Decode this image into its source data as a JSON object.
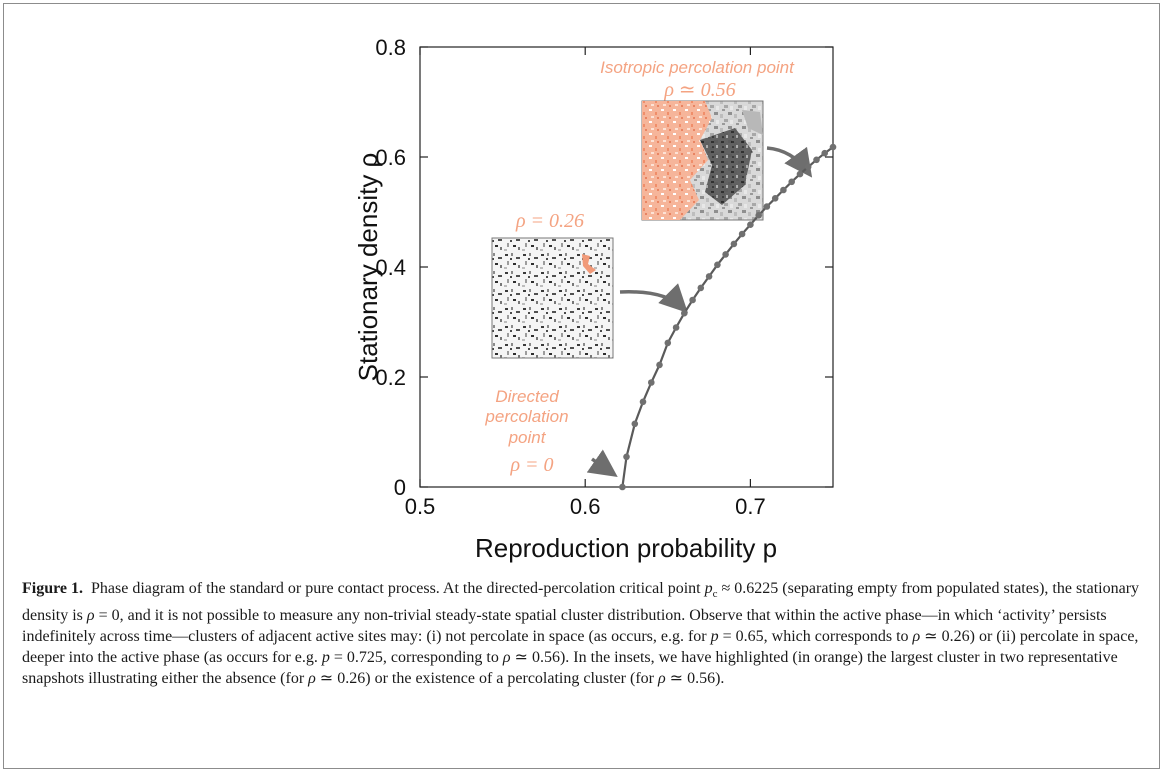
{
  "figure": {
    "label": "Figure 1.",
    "caption_parts": [
      "Phase diagram of the standard or pure contact process. At the directed-percolation critical point ",
      "p",
      "c",
      " ≈ 0.6225 (separating empty from populated states), the stationary density is ",
      "ρ",
      " = 0, and it is not possible to measure any non-trivial steady-state spatial cluster distribution. Observe that within the active phase—in which ‘activity’ persists indefinitely across time—clusters of adjacent active sites may: (i) not percolate in space (as occurs, e.g. for ",
      "p",
      " = 0.65, which corresponds to ",
      "ρ",
      " ≃ 0.26) or (ii) percolate in space, deeper into the active phase (as occurs for e.g. ",
      "p",
      " = 0.725, corresponding to ",
      "ρ",
      " ≃ 0.56). In the insets, we have highlighted (in orange) the largest cluster in two representative snapshots illustrating either the absence (for ",
      "ρ",
      " ≃ 0.26) or the existence of a percolating cluster (for ",
      "ρ",
      " ≃ 0.56)."
    ]
  },
  "annotations": {
    "isotropic_line1": "Isotropic percolation point",
    "isotropic_line2": "ρ ≃ 0.56",
    "mid_label": "ρ = 0.26",
    "directed_line1": "Directed",
    "directed_line2": "percolation",
    "directed_line3": "point",
    "directed_line4": "ρ = 0"
  },
  "colors": {
    "accent_orange": "#f4a382",
    "curve": "#5a5a5a",
    "marker": "#707070",
    "arrow": "#6e6e6e",
    "axis": "#222222"
  },
  "chart_data": {
    "type": "line",
    "xlabel": "Reproduction probability p",
    "ylabel": "Stationary density  ρ",
    "xlim": [
      0.5,
      0.75
    ],
    "ylim": [
      0,
      0.8
    ],
    "xticks": [
      0.5,
      0.6,
      0.7
    ],
    "yticks": [
      0,
      0.2,
      0.4,
      0.6,
      0.8
    ],
    "grid": false,
    "series": [
      {
        "x": [
          0.6225,
          0.625,
          0.63,
          0.635,
          0.64,
          0.645,
          0.65,
          0.655,
          0.66,
          0.665,
          0.67,
          0.675,
          0.68,
          0.685,
          0.69,
          0.695,
          0.7,
          0.705,
          0.71,
          0.715,
          0.72,
          0.725,
          0.73,
          0.735,
          0.74,
          0.745,
          0.75
        ],
        "y": [
          0.0,
          0.055,
          0.115,
          0.155,
          0.19,
          0.222,
          0.262,
          0.29,
          0.316,
          0.34,
          0.362,
          0.383,
          0.404,
          0.423,
          0.442,
          0.46,
          0.477,
          0.494,
          0.51,
          0.525,
          0.54,
          0.555,
          0.569,
          0.582,
          0.595,
          0.607,
          0.618
        ]
      }
    ]
  }
}
